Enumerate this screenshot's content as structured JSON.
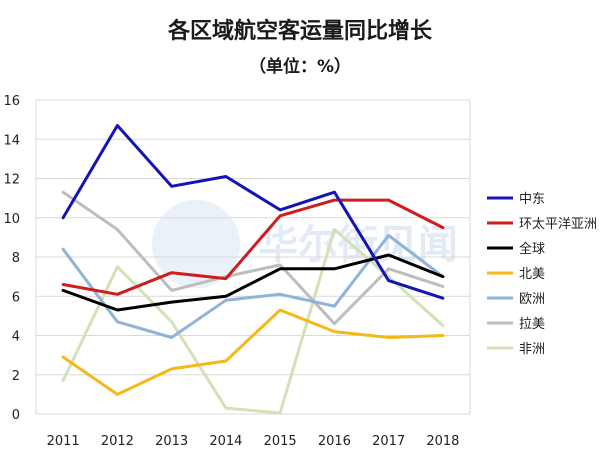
{
  "chart_data": {
    "type": "line",
    "title": "各区域航空客运量同比增长",
    "subtitle": "（单位：%）",
    "x": [
      "2011",
      "2012",
      "2013",
      "2014",
      "2015",
      "2016",
      "2017",
      "2018"
    ],
    "ylim": [
      0,
      16
    ],
    "yticks": [
      0,
      2,
      4,
      6,
      8,
      10,
      12,
      14,
      16
    ],
    "grid": true,
    "legend_position": "right",
    "series": [
      {
        "name": "中东",
        "color": "#1414b4",
        "values": [
          10.0,
          14.7,
          11.6,
          12.1,
          10.4,
          11.3,
          6.8,
          5.9
        ]
      },
      {
        "name": "环太平洋亚洲",
        "color": "#d01c1c",
        "values": [
          6.6,
          6.1,
          7.2,
          6.9,
          10.1,
          10.9,
          10.9,
          9.5
        ]
      },
      {
        "name": "全球",
        "color": "#000000",
        "values": [
          6.3,
          5.3,
          5.7,
          6.0,
          7.4,
          7.4,
          8.1,
          7.0
        ]
      },
      {
        "name": "北美",
        "color": "#f4b918",
        "values": [
          2.9,
          1.0,
          2.3,
          2.7,
          5.3,
          4.2,
          3.9,
          4.0
        ]
      },
      {
        "name": "欧洲",
        "color": "#8fb3d9",
        "values": [
          8.4,
          4.7,
          3.9,
          5.8,
          6.1,
          5.5,
          9.1,
          7.0
        ]
      },
      {
        "name": "拉美",
        "color": "#bdbdbd",
        "values": [
          11.3,
          9.4,
          6.3,
          7.0,
          7.6,
          4.6,
          7.4,
          6.5
        ]
      },
      {
        "name": "非洲",
        "color": "#d3e0b8",
        "values": [
          1.7,
          7.5,
          4.7,
          0.3,
          0.05,
          9.4,
          7.0,
          4.5
        ]
      }
    ]
  },
  "watermark_text": "华尔街见闻"
}
